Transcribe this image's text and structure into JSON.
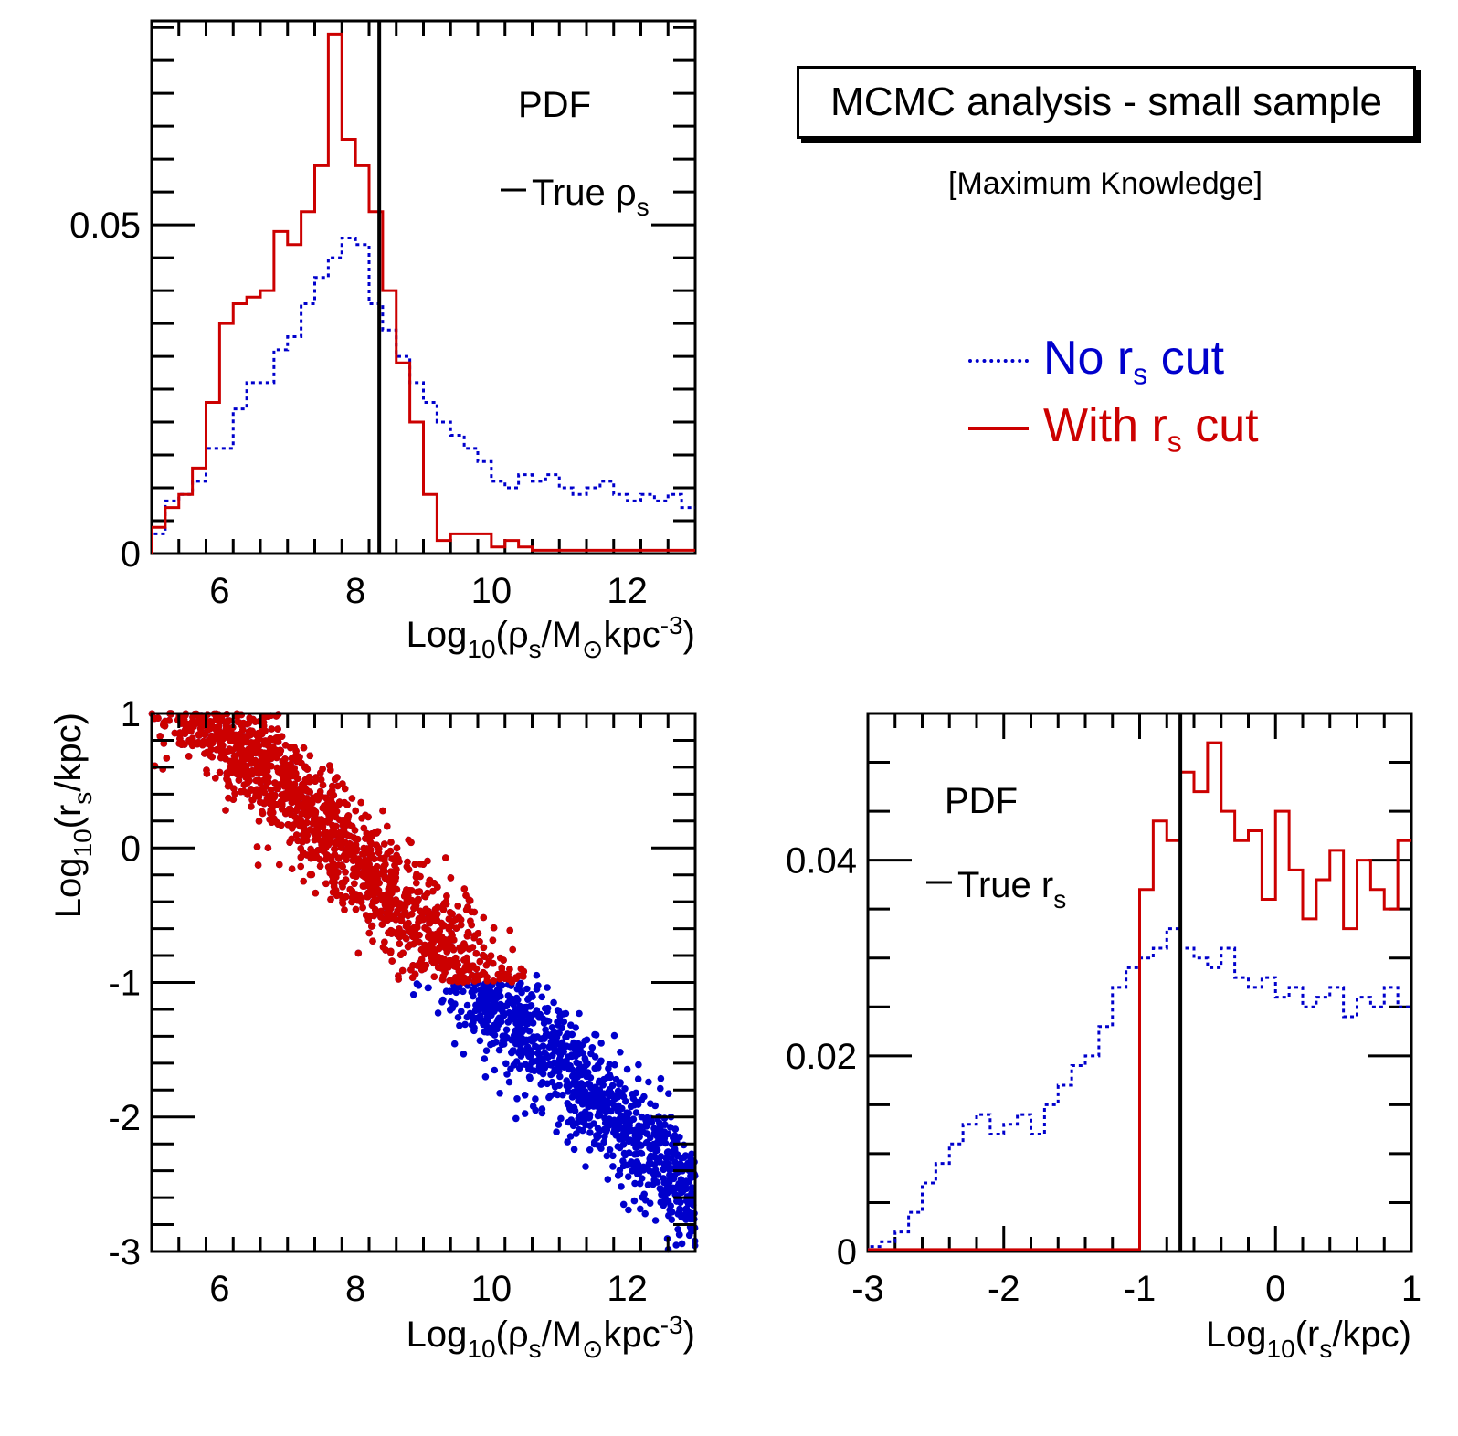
{
  "title": "MCMC analysis - small sample",
  "subtitle": "[Maximum Knowledge]",
  "legend": {
    "no_cut_prefix": "No r",
    "no_cut_sub": "s",
    "no_cut_suffix": " cut",
    "with_cut_prefix": "With r",
    "with_cut_sub": "s",
    "with_cut_suffix": " cut"
  },
  "colors": {
    "no_cut": "#0000cc",
    "with_cut": "#cc0000",
    "axis": "#000000"
  },
  "chart_data": [
    {
      "id": "rho_pdf",
      "type": "line",
      "style": "step",
      "title": "PDF",
      "true_label": "True ρ",
      "true_label_sub": "s",
      "true_value": 8.35,
      "xlim": [
        5,
        13
      ],
      "ylim": [
        0,
        0.081
      ],
      "xticks": [
        6,
        8,
        10,
        12
      ],
      "yticks": [
        0,
        0.05
      ],
      "yticklabels": [
        "0",
        "0.05"
      ],
      "xlabel_parts": [
        "Log",
        "10",
        "(ρ",
        "s",
        "/M",
        "⊙",
        "kpc",
        "-3",
        ")"
      ],
      "x_edges": [
        5.0,
        5.2,
        5.4,
        5.6,
        5.8,
        6.0,
        6.2,
        6.4,
        6.6,
        6.8,
        7.0,
        7.2,
        7.4,
        7.6,
        7.8,
        8.0,
        8.2,
        8.4,
        8.6,
        8.8,
        9.0,
        9.2,
        9.4,
        9.6,
        9.8,
        10.0,
        10.2,
        10.4,
        10.6,
        10.8,
        11.0,
        11.2,
        11.4,
        11.6,
        11.8,
        12.0,
        12.2,
        12.4,
        12.6,
        12.8,
        13.0
      ],
      "series": [
        {
          "name": "No r_s cut",
          "color": "#0000cc",
          "dash": "4,4",
          "values": [
            0.003,
            0.008,
            0.009,
            0.011,
            0.016,
            0.016,
            0.022,
            0.026,
            0.026,
            0.031,
            0.033,
            0.038,
            0.042,
            0.045,
            0.048,
            0.047,
            0.038,
            0.034,
            0.03,
            0.026,
            0.023,
            0.02,
            0.018,
            0.016,
            0.014,
            0.011,
            0.01,
            0.012,
            0.011,
            0.012,
            0.01,
            0.009,
            0.01,
            0.011,
            0.009,
            0.008,
            0.009,
            0.008,
            0.009,
            0.007
          ]
        },
        {
          "name": "With r_s cut",
          "color": "#cc0000",
          "dash": "",
          "values": [
            0.004,
            0.007,
            0.009,
            0.013,
            0.023,
            0.035,
            0.038,
            0.039,
            0.04,
            0.049,
            0.047,
            0.052,
            0.059,
            0.079,
            0.063,
            0.059,
            0.052,
            0.04,
            0.029,
            0.02,
            0.009,
            0.002,
            0.003,
            0.003,
            0.003,
            0.001,
            0.002,
            0.001,
            0.0005,
            0.0005,
            0.0005,
            0.0005,
            0.0005,
            0.0005,
            0.0005,
            0.0005,
            0.0005,
            0.0005,
            0.0005,
            0.0005
          ]
        }
      ]
    },
    {
      "id": "scatter",
      "type": "scatter",
      "xlim": [
        5,
        13
      ],
      "ylim": [
        -3,
        1
      ],
      "xticks": [
        6,
        8,
        10,
        12
      ],
      "yticks": [
        1,
        0,
        -1,
        -2,
        -3
      ],
      "xlabel_parts": [
        "Log",
        "10",
        "(ρ",
        "s",
        "/M",
        "⊙",
        "kpc",
        "-3",
        ")"
      ],
      "ylabel_parts": [
        "Log",
        "10",
        "(r",
        "s",
        "/kpc)"
      ],
      "relation": {
        "slope": -0.5,
        "intercept": 3.9,
        "scatter": 0.22,
        "n_points": 1400
      },
      "series": [
        {
          "name": "No r_s cut",
          "color": "#0000cc",
          "x_range": [
            5,
            13
          ],
          "y_range": [
            -3,
            1
          ]
        },
        {
          "name": "With r_s cut",
          "color": "#cc0000",
          "x_range": [
            5,
            10.5
          ],
          "y_range": [
            -1,
            1
          ]
        }
      ]
    },
    {
      "id": "rs_pdf",
      "type": "line",
      "style": "step",
      "title": "PDF",
      "true_label": "True r",
      "true_label_sub": "s",
      "true_value": -0.7,
      "xlim": [
        -3,
        1
      ],
      "ylim": [
        0,
        0.055
      ],
      "xticks": [
        -3,
        -2,
        -1,
        0,
        1
      ],
      "yticks": [
        0,
        0.02,
        0.04
      ],
      "yticklabels": [
        "0",
        "0.02",
        "0.04"
      ],
      "xlabel_parts": [
        "Log",
        "10",
        "(r",
        "s",
        "/kpc)"
      ],
      "x_edges": [
        -3.0,
        -2.9,
        -2.8,
        -2.7,
        -2.6,
        -2.5,
        -2.4,
        -2.3,
        -2.2,
        -2.1,
        -2.0,
        -1.9,
        -1.8,
        -1.7,
        -1.6,
        -1.5,
        -1.4,
        -1.3,
        -1.2,
        -1.1,
        -1.0,
        -0.9,
        -0.8,
        -0.7,
        -0.6,
        -0.5,
        -0.4,
        -0.3,
        -0.2,
        -0.1,
        0.0,
        0.1,
        0.2,
        0.3,
        0.4,
        0.5,
        0.6,
        0.7,
        0.8,
        0.9,
        1.0
      ],
      "series": [
        {
          "name": "No r_s cut",
          "color": "#0000cc",
          "dash": "4,4",
          "values": [
            0.0005,
            0.001,
            0.002,
            0.004,
            0.007,
            0.009,
            0.011,
            0.013,
            0.014,
            0.012,
            0.013,
            0.014,
            0.012,
            0.015,
            0.017,
            0.019,
            0.02,
            0.023,
            0.027,
            0.029,
            0.03,
            0.031,
            0.033,
            0.031,
            0.03,
            0.029,
            0.031,
            0.028,
            0.027,
            0.028,
            0.026,
            0.027,
            0.025,
            0.026,
            0.027,
            0.024,
            0.026,
            0.025,
            0.027,
            0.025
          ]
        },
        {
          "name": "With r_s cut",
          "color": "#cc0000",
          "dash": "",
          "values": [
            0.0002,
            0.0002,
            0.0002,
            0.0002,
            0.0002,
            0.0002,
            0.0002,
            0.0002,
            0.0002,
            0.0002,
            0.0002,
            0.0002,
            0.0002,
            0.0002,
            0.0002,
            0.0002,
            0.0002,
            0.0002,
            0.0002,
            0.0002,
            0.037,
            0.044,
            0.042,
            0.049,
            0.047,
            0.052,
            0.045,
            0.042,
            0.043,
            0.036,
            0.045,
            0.039,
            0.034,
            0.038,
            0.041,
            0.033,
            0.04,
            0.037,
            0.035,
            0.042
          ]
        }
      ]
    }
  ]
}
